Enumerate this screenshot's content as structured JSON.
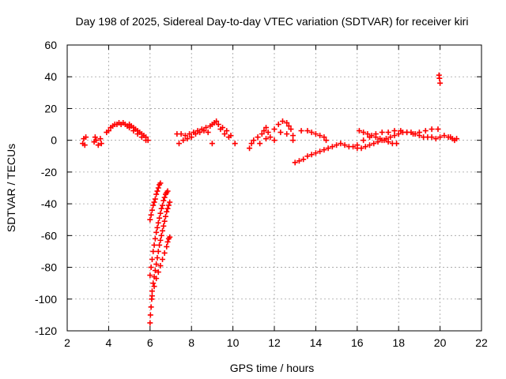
{
  "chart_data": {
    "type": "scatter",
    "title": "Day 198 of 2025, Sidereal Day-to-day VTEC variation (SDTVAR) for receiver kiri",
    "xlabel": "GPS time / hours",
    "ylabel": "SDTVAR / TECUs",
    "xlim": [
      2,
      22
    ],
    "ylim": [
      -120,
      60
    ],
    "xticks": [
      2,
      4,
      6,
      8,
      10,
      12,
      14,
      16,
      18,
      20,
      22
    ],
    "yticks": [
      -120,
      -100,
      -80,
      -60,
      -40,
      -20,
      0,
      20,
      40,
      60
    ],
    "grid": true,
    "marker": "+",
    "color": "#ff0000",
    "series": [
      {
        "name": "SDTVAR",
        "points": [
          [
            2.75,
            -2
          ],
          [
            2.8,
            1
          ],
          [
            2.85,
            -3
          ],
          [
            2.9,
            2
          ],
          [
            3.3,
            -1
          ],
          [
            3.35,
            2
          ],
          [
            3.4,
            0
          ],
          [
            3.5,
            -3
          ],
          [
            3.6,
            1
          ],
          [
            3.65,
            -2
          ],
          [
            3.9,
            5
          ],
          [
            4.0,
            6
          ],
          [
            4.1,
            8
          ],
          [
            4.2,
            9
          ],
          [
            4.3,
            10
          ],
          [
            4.4,
            10
          ],
          [
            4.5,
            11
          ],
          [
            4.6,
            10
          ],
          [
            4.7,
            11
          ],
          [
            4.8,
            10
          ],
          [
            4.9,
            9
          ],
          [
            5.0,
            10
          ],
          [
            5.1,
            9
          ],
          [
            5.2,
            8
          ],
          [
            5.3,
            7
          ],
          [
            5.4,
            6
          ],
          [
            5.5,
            5
          ],
          [
            5.6,
            4
          ],
          [
            5.7,
            3
          ],
          [
            5.8,
            2
          ],
          [
            5.9,
            0
          ],
          [
            5.0,
            8
          ],
          [
            5.2,
            6
          ],
          [
            5.4,
            4
          ],
          [
            5.6,
            2
          ],
          [
            5.8,
            0
          ],
          [
            6.0,
            -50
          ],
          [
            6.05,
            -47
          ],
          [
            6.1,
            -44
          ],
          [
            6.15,
            -41
          ],
          [
            6.2,
            -39
          ],
          [
            6.25,
            -37
          ],
          [
            6.3,
            -34
          ],
          [
            6.35,
            -32
          ],
          [
            6.4,
            -30
          ],
          [
            6.45,
            -28
          ],
          [
            6.5,
            -27
          ],
          [
            6.0,
            -85
          ],
          [
            6.05,
            -80
          ],
          [
            6.1,
            -75
          ],
          [
            6.15,
            -70
          ],
          [
            6.2,
            -66
          ],
          [
            6.25,
            -62
          ],
          [
            6.3,
            -58
          ],
          [
            6.35,
            -55
          ],
          [
            6.4,
            -52
          ],
          [
            6.45,
            -49
          ],
          [
            6.5,
            -46
          ],
          [
            6.55,
            -43
          ],
          [
            6.6,
            -41
          ],
          [
            6.65,
            -38
          ],
          [
            6.7,
            -36
          ],
          [
            6.75,
            -34
          ],
          [
            6.8,
            -33
          ],
          [
            6.85,
            -32
          ],
          [
            6.0,
            -115
          ],
          [
            6.02,
            -110
          ],
          [
            6.05,
            -105
          ],
          [
            6.08,
            -100
          ],
          [
            6.1,
            -95
          ],
          [
            6.15,
            -90
          ],
          [
            6.2,
            -86
          ],
          [
            6.25,
            -82
          ],
          [
            6.3,
            -78
          ],
          [
            6.35,
            -74
          ],
          [
            6.4,
            -70
          ],
          [
            6.45,
            -66
          ],
          [
            6.5,
            -63
          ],
          [
            6.55,
            -60
          ],
          [
            6.6,
            -57
          ],
          [
            6.65,
            -54
          ],
          [
            6.7,
            -51
          ],
          [
            6.75,
            -48
          ],
          [
            6.8,
            -45
          ],
          [
            6.85,
            -43
          ],
          [
            6.9,
            -41
          ],
          [
            6.95,
            -39
          ],
          [
            6.1,
            -98
          ],
          [
            6.2,
            -92
          ],
          [
            6.3,
            -87
          ],
          [
            6.4,
            -83
          ],
          [
            6.5,
            -79
          ],
          [
            6.6,
            -75
          ],
          [
            6.7,
            -71
          ],
          [
            6.8,
            -67
          ],
          [
            6.85,
            -64
          ],
          [
            6.9,
            -62
          ],
          [
            6.95,
            -61
          ],
          [
            7.3,
            4
          ],
          [
            7.5,
            4
          ],
          [
            7.7,
            3
          ],
          [
            7.9,
            4
          ],
          [
            8.1,
            5
          ],
          [
            8.3,
            6
          ],
          [
            8.5,
            7
          ],
          [
            8.7,
            8
          ],
          [
            8.9,
            9
          ],
          [
            9.0,
            10
          ],
          [
            9.1,
            11
          ],
          [
            9.2,
            12
          ],
          [
            9.3,
            10
          ],
          [
            9.5,
            8
          ],
          [
            9.7,
            6
          ],
          [
            9.9,
            3
          ],
          [
            10.1,
            -2
          ],
          [
            7.4,
            -2
          ],
          [
            7.6,
            0
          ],
          [
            7.8,
            1
          ],
          [
            8.0,
            2
          ],
          [
            8.2,
            4
          ],
          [
            8.4,
            5
          ],
          [
            8.6,
            6
          ],
          [
            8.8,
            5
          ],
          [
            9.0,
            -2
          ],
          [
            9.4,
            7
          ],
          [
            9.6,
            4
          ],
          [
            9.8,
            2
          ],
          [
            10.8,
            -5
          ],
          [
            10.9,
            -2
          ],
          [
            11.0,
            0
          ],
          [
            11.2,
            2
          ],
          [
            11.4,
            4
          ],
          [
            11.5,
            6
          ],
          [
            11.6,
            8
          ],
          [
            11.7,
            5
          ],
          [
            11.8,
            2
          ],
          [
            12.0,
            7
          ],
          [
            12.2,
            10
          ],
          [
            12.4,
            12
          ],
          [
            12.6,
            11
          ],
          [
            12.7,
            9
          ],
          [
            12.8,
            7
          ],
          [
            12.9,
            3
          ],
          [
            13.0,
            -14
          ],
          [
            11.3,
            -2
          ],
          [
            11.6,
            1
          ],
          [
            12.0,
            0
          ],
          [
            12.3,
            5
          ],
          [
            12.6,
            4
          ],
          [
            12.9,
            0
          ],
          [
            13.2,
            -13
          ],
          [
            13.4,
            -12
          ],
          [
            13.6,
            -10
          ],
          [
            13.8,
            -9
          ],
          [
            14.0,
            -8
          ],
          [
            14.2,
            -7
          ],
          [
            14.4,
            -6
          ],
          [
            14.6,
            -5
          ],
          [
            14.8,
            -4
          ],
          [
            15.0,
            -3
          ],
          [
            13.3,
            6
          ],
          [
            13.6,
            6
          ],
          [
            13.8,
            5
          ],
          [
            14.0,
            4
          ],
          [
            14.2,
            3
          ],
          [
            14.4,
            2
          ],
          [
            14.5,
            0
          ],
          [
            15.2,
            -2
          ],
          [
            15.4,
            -3
          ],
          [
            15.6,
            -4
          ],
          [
            15.8,
            -4
          ],
          [
            16.0,
            -5
          ],
          [
            16.2,
            -5
          ],
          [
            16.4,
            -4
          ],
          [
            16.6,
            -3
          ],
          [
            16.8,
            -2
          ],
          [
            17.0,
            -1
          ],
          [
            17.2,
            0
          ],
          [
            17.4,
            1
          ],
          [
            17.6,
            2
          ],
          [
            17.8,
            3
          ],
          [
            18.0,
            4
          ],
          [
            18.2,
            5
          ],
          [
            18.4,
            5
          ],
          [
            18.6,
            5
          ],
          [
            18.8,
            4
          ],
          [
            19.0,
            3
          ],
          [
            19.2,
            2
          ],
          [
            19.4,
            2
          ],
          [
            19.6,
            2
          ],
          [
            19.8,
            1
          ],
          [
            20.0,
            2
          ],
          [
            16.1,
            6
          ],
          [
            16.3,
            5
          ],
          [
            16.5,
            4
          ],
          [
            16.7,
            3
          ],
          [
            16.9,
            2
          ],
          [
            17.1,
            1
          ],
          [
            17.3,
            0
          ],
          [
            17.5,
            -1
          ],
          [
            17.7,
            -2
          ],
          [
            17.9,
            -2
          ],
          [
            16.0,
            -3
          ],
          [
            16.3,
            0
          ],
          [
            16.6,
            2
          ],
          [
            16.9,
            4
          ],
          [
            17.2,
            5
          ],
          [
            17.5,
            5
          ],
          [
            17.8,
            6
          ],
          [
            18.1,
            6
          ],
          [
            18.4,
            5
          ],
          [
            18.7,
            4
          ],
          [
            19.0,
            5
          ],
          [
            19.3,
            6
          ],
          [
            19.6,
            7
          ],
          [
            19.9,
            7
          ],
          [
            20.2,
            3
          ],
          [
            20.4,
            2
          ],
          [
            20.6,
            1
          ],
          [
            20.8,
            1
          ],
          [
            20.5,
            2
          ],
          [
            20.7,
            0
          ],
          [
            19.95,
            41
          ],
          [
            19.97,
            39
          ],
          [
            20.0,
            36
          ]
        ]
      }
    ]
  }
}
